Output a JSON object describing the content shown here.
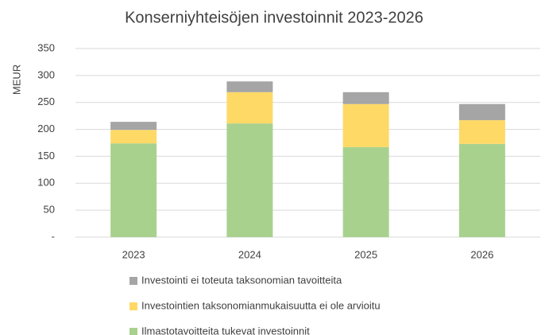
{
  "chart_data": {
    "type": "stacked_bar",
    "title": "Konserniyhteisöjen investoinnit 2023-2026",
    "y_label": "MEUR",
    "categories": [
      "2023",
      "2024",
      "2025",
      "2026"
    ],
    "series": [
      {
        "name": "Ilmastotavoitteita tukevat investoinnit",
        "color": "#a9d18e",
        "values": [
          174,
          211,
          167,
          173
        ]
      },
      {
        "name": "Investointien taksonomianmukaisuutta ei ole arvioitu",
        "color": "#ffd966",
        "values": [
          25,
          58,
          80,
          44
        ]
      },
      {
        "name": "Investointi ei toteuta taksonomian tavoitteita",
        "color": "#a5a5a5",
        "values": [
          15,
          20,
          22,
          30
        ]
      }
    ],
    "ylim": [
      0,
      350
    ],
    "yticks": [
      {
        "value": 0,
        "label": "-"
      },
      50,
      100,
      150,
      200,
      250,
      300,
      350
    ],
    "grid": true,
    "legend": "bottom"
  }
}
